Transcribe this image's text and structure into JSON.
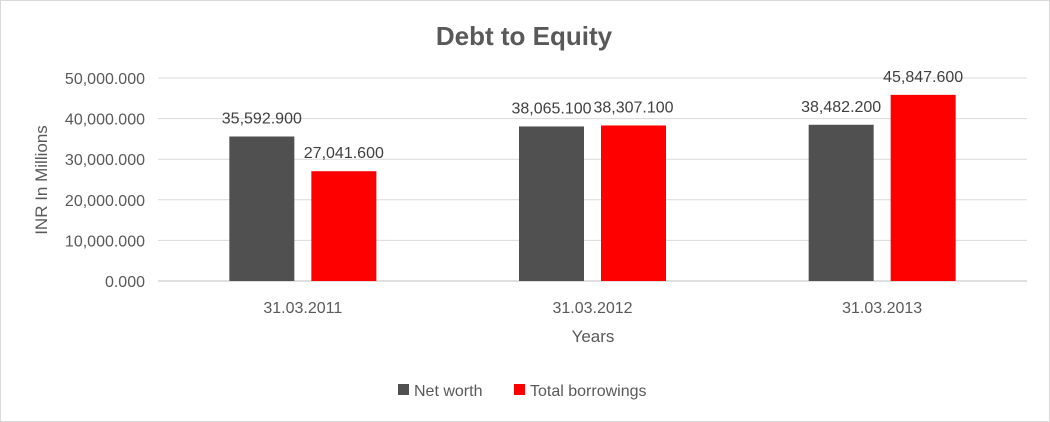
{
  "chart_data": {
    "type": "bar",
    "title": "Debt to Equity",
    "xlabel": "Years",
    "ylabel": "INR In Millions",
    "categories": [
      "31.03.2011",
      "31.03.2012",
      "31.03.2013"
    ],
    "series": [
      {
        "name": "Net worth",
        "color": "#505050",
        "values": [
          35592.9,
          38065.1,
          38482.2
        ],
        "labels": [
          "35,592.900",
          "38,065.100",
          "38,482.200"
        ]
      },
      {
        "name": "Total borrowings",
        "color": "#ff0000",
        "values": [
          27041.6,
          38307.1,
          45847.6
        ],
        "labels": [
          "27,041.600",
          "38,307.100",
          "45,847.600"
        ]
      }
    ],
    "ylim": [
      0,
      50000
    ],
    "yticks": [
      0,
      10000,
      20000,
      30000,
      40000,
      50000
    ],
    "ytick_labels": [
      "0.000",
      "10,000.000",
      "20,000.000",
      "30,000.000",
      "40,000.000",
      "50,000.000"
    ],
    "grid": true,
    "legend_position": "bottom"
  }
}
